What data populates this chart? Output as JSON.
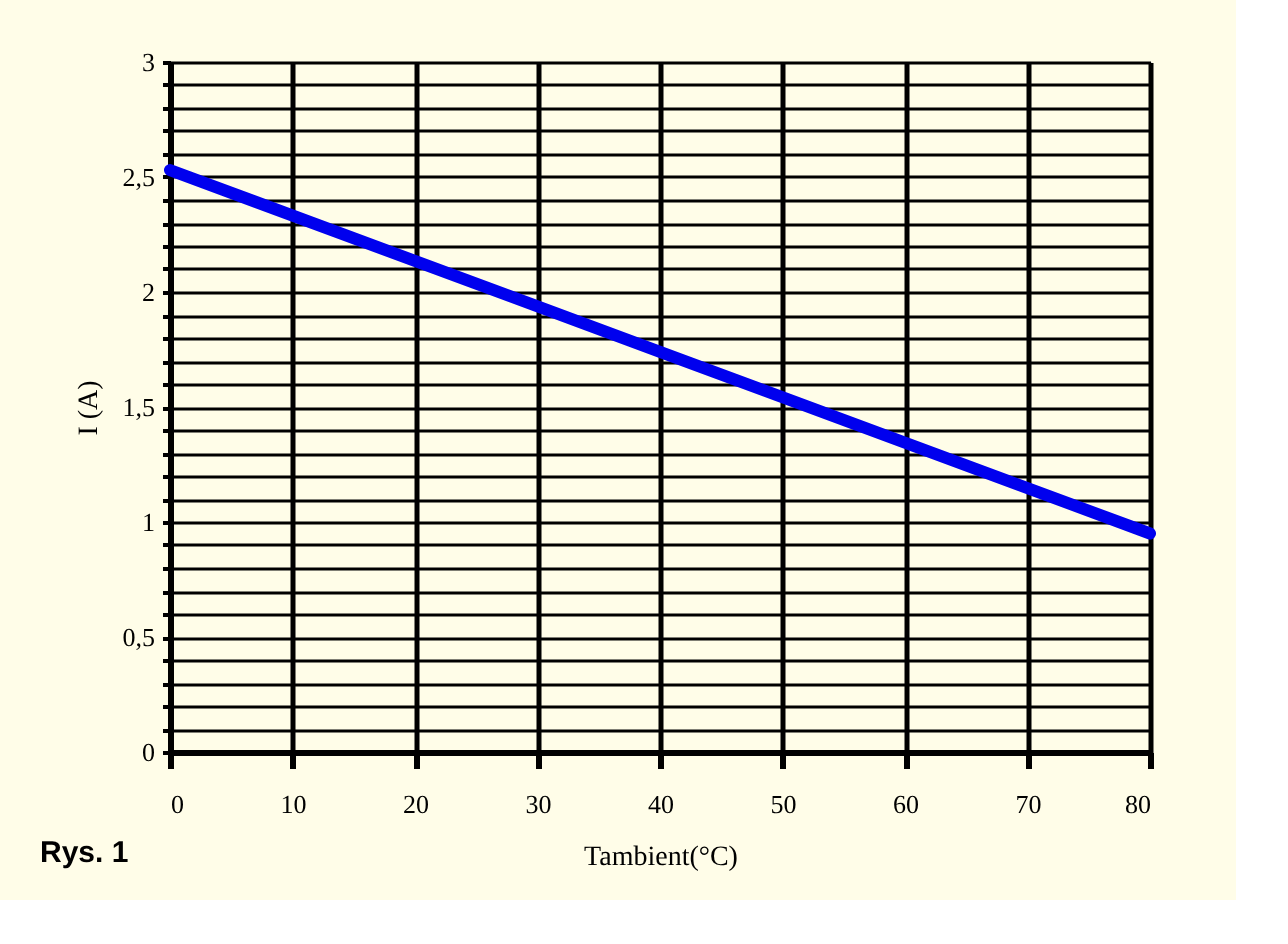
{
  "chart_data": {
    "type": "line",
    "x": [
      0,
      40,
      80
    ],
    "series": [
      {
        "color": "#0000ee",
        "values": [
          2.53,
          1.74,
          0.95
        ]
      }
    ],
    "xlim": [
      0,
      80
    ],
    "ylim": [
      0,
      3
    ],
    "xticks": [
      0,
      10,
      20,
      30,
      40,
      50,
      60,
      70,
      80
    ],
    "yticks": [
      0,
      {
        "value": 0.1,
        "label": null
      },
      {
        "value": 0.2,
        "label": null
      },
      {
        "value": 0.3,
        "label": null
      },
      {
        "value": 0.4,
        "label": null
      },
      {
        "value": 0.5,
        "label": "0,5"
      },
      {
        "value": 0.6,
        "label": null
      },
      {
        "value": 0.7,
        "label": null
      },
      {
        "value": 0.8,
        "label": null
      },
      {
        "value": 0.9,
        "label": null
      },
      1,
      {
        "value": 1.1,
        "label": null
      },
      {
        "value": 1.2,
        "label": null
      },
      {
        "value": 1.3,
        "label": null
      },
      {
        "value": 1.4,
        "label": null
      },
      {
        "value": 1.5,
        "label": "1,5"
      },
      {
        "value": 1.6,
        "label": null
      },
      {
        "value": 1.7,
        "label": null
      },
      {
        "value": 1.8,
        "label": null
      },
      {
        "value": 1.9,
        "label": null
      },
      2,
      {
        "value": 2.1,
        "label": null
      },
      {
        "value": 2.2,
        "label": null
      },
      {
        "value": 2.3,
        "label": null
      },
      {
        "value": 2.4,
        "label": null
      },
      {
        "value": 2.5,
        "label": "2,5"
      },
      {
        "value": 2.6,
        "label": null
      },
      {
        "value": 2.7,
        "label": null
      },
      {
        "value": 2.8,
        "label": null
      },
      {
        "value": 2.9,
        "label": null
      },
      3
    ],
    "xlabel": "Tambient(°C)",
    "ylabel": "I (A)",
    "annotations": [
      "Rys. 1"
    ],
    "grid": true,
    "marker": "none",
    "line_style": "solid"
  }
}
